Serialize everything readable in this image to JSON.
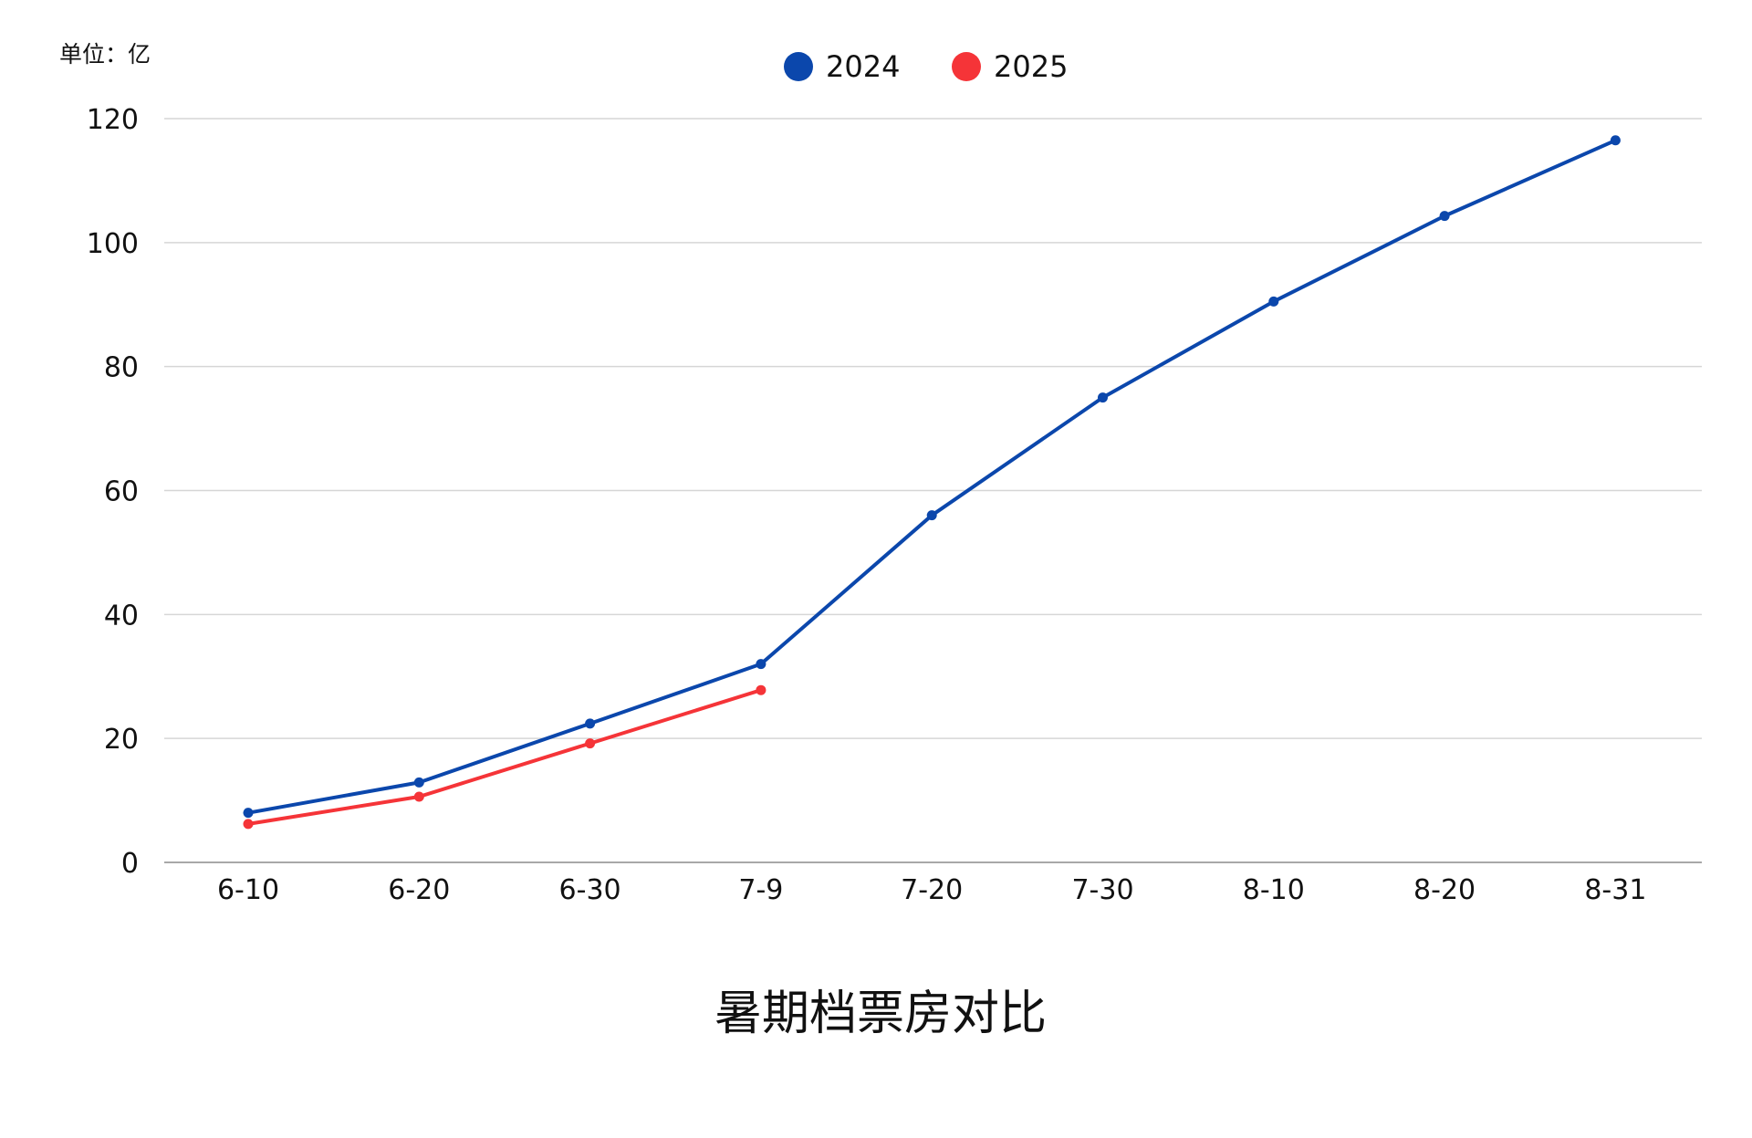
{
  "chart_data": {
    "type": "line",
    "title": "暑期档票房对比",
    "unit_label": "单位：亿",
    "categories": [
      "6-10",
      "6-20",
      "6-30",
      "7-9",
      "7-20",
      "7-30",
      "8-10",
      "8-20",
      "8-31"
    ],
    "ylim": [
      0,
      120
    ],
    "yticks": [
      0,
      20,
      40,
      60,
      80,
      100,
      120
    ],
    "grid": true,
    "legend_position": "top-center",
    "series": [
      {
        "name": "2024",
        "color": "#0B47AC",
        "values": [
          8,
          12.9,
          22.4,
          32,
          56,
          75,
          90.5,
          104.3,
          116.5
        ]
      },
      {
        "name": "2025",
        "color": "#F53438",
        "values": [
          6.2,
          10.6,
          19.2,
          27.8,
          null,
          null,
          null,
          null,
          null
        ]
      }
    ]
  }
}
